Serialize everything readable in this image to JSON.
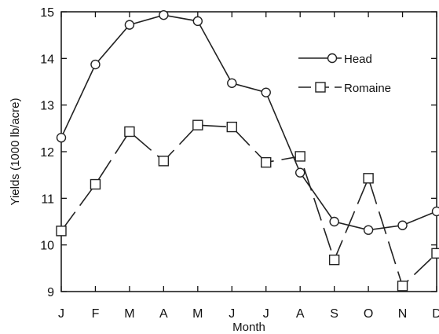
{
  "chart_data": {
    "type": "line",
    "title": "",
    "xlabel": "Month",
    "ylabel": "Yields (1000 lb/acre)",
    "categories": [
      "J",
      "F",
      "M",
      "A",
      "M",
      "J",
      "J",
      "A",
      "S",
      "O",
      "N",
      "D"
    ],
    "ylim": [
      9,
      15
    ],
    "yticks": [
      9,
      10,
      11,
      12,
      13,
      14,
      15
    ],
    "grid": false,
    "legend_position": "top-right",
    "series": [
      {
        "name": "Head",
        "marker": "circle",
        "line_style": "solid",
        "color": "#222222",
        "values": [
          12.3,
          13.87,
          14.72,
          14.93,
          14.8,
          13.47,
          13.27,
          11.55,
          10.5,
          10.32,
          10.42,
          10.72
        ]
      },
      {
        "name": "Romaine",
        "marker": "square",
        "line_style": "dashed",
        "color": "#222222",
        "values": [
          10.3,
          11.3,
          12.43,
          11.8,
          12.57,
          12.53,
          11.77,
          11.9,
          9.68,
          11.43,
          9.12,
          9.82
        ]
      }
    ]
  }
}
